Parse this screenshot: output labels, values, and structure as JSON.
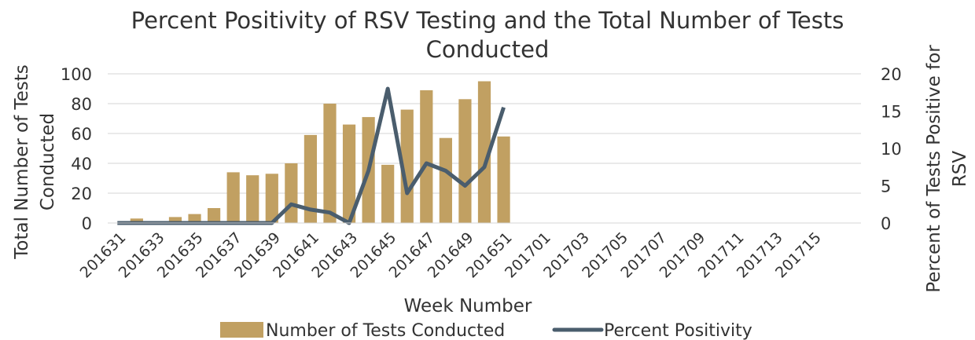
{
  "chart_data": {
    "type": "bar-line",
    "title": "Percent Positivity of RSV Testing and the Total Number of Tests Conducted",
    "x_label": "Week Number",
    "y_label": "Total Number of Tests Conducted",
    "y2_label": "Percent of Tests Positive for RSV",
    "categories": [
      "201631",
      null,
      "201633",
      null,
      "201635",
      null,
      "201637",
      null,
      "201639",
      null,
      "201641",
      null,
      "201643",
      null,
      "201645",
      null,
      "201647",
      null,
      "201649",
      null,
      "201651",
      null,
      "201701",
      null,
      "201703",
      null,
      "201705",
      null,
      "201707",
      null,
      "201709",
      null,
      "201711",
      null,
      "201713",
      null,
      "201715",
      null,
      null
    ],
    "series": [
      {
        "name": "Number of Tests Conducted",
        "type": "bar",
        "color": "#c1a062",
        "values": [
          0,
          3,
          0,
          4,
          6,
          10,
          34,
          32,
          33,
          40,
          59,
          80,
          66,
          71,
          39,
          76,
          89,
          57,
          83,
          95,
          58,
          null,
          null,
          null,
          null,
          null,
          null,
          null,
          null,
          null,
          null,
          null,
          null,
          null,
          null,
          null,
          null,
          null,
          null
        ]
      },
      {
        "name": "Percent Positivity",
        "type": "line",
        "axis": "y2",
        "color": "#4a5d6d",
        "values": [
          0,
          0,
          0,
          0,
          0,
          0,
          0,
          0,
          0,
          2.5,
          1.8,
          1.4,
          0,
          7,
          18,
          4,
          8,
          7,
          5,
          7.5,
          15.5,
          null,
          null,
          null,
          null,
          null,
          null,
          null,
          null,
          null,
          null,
          null,
          null,
          null,
          null,
          null,
          null,
          null,
          null
        ]
      }
    ],
    "ylim": [
      0,
      100
    ],
    "yticks": [
      0,
      20,
      40,
      60,
      80,
      100
    ],
    "y2lim": [
      0,
      20
    ],
    "y2ticks": [
      0,
      5,
      10,
      15,
      20
    ],
    "grid": true,
    "legend": "bottom"
  }
}
